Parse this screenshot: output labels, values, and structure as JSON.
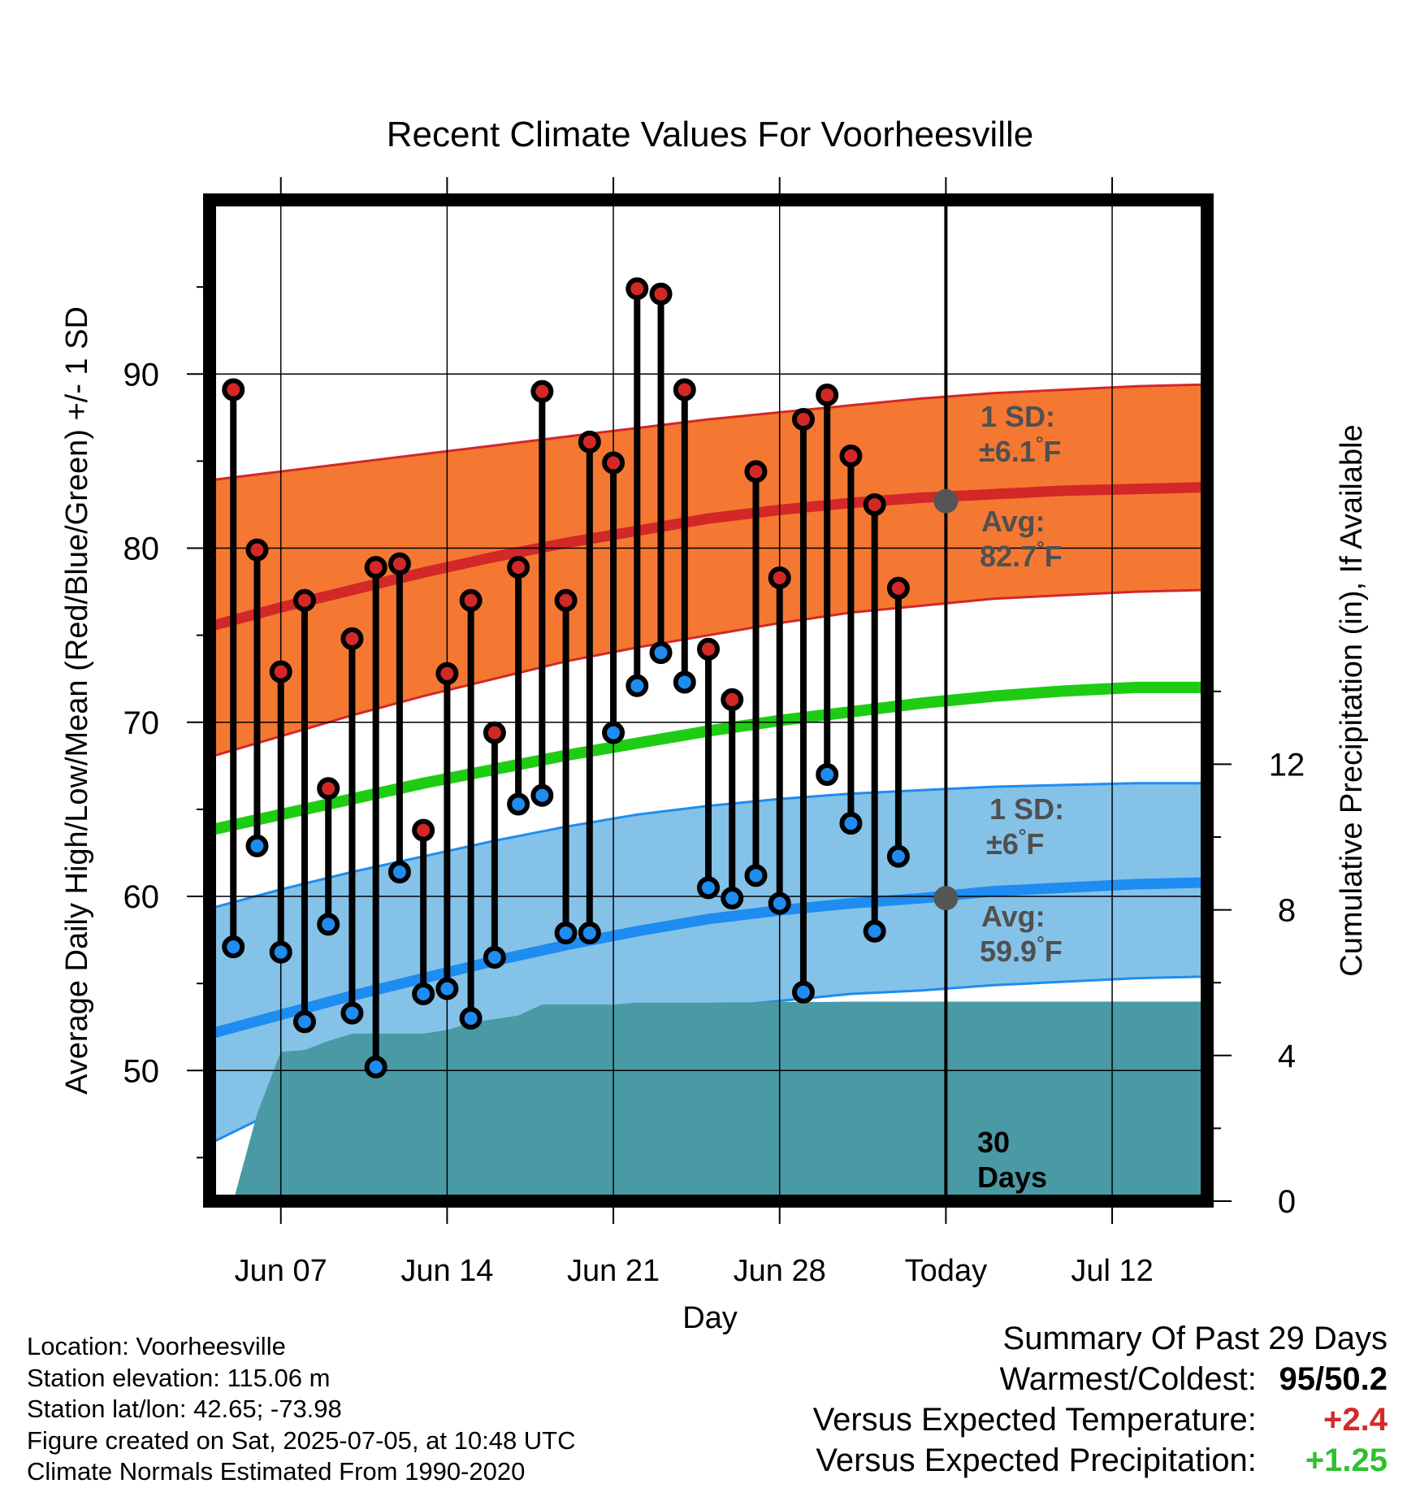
{
  "colors": {
    "high_marker": "#d22828",
    "low_marker": "#1e8cf0",
    "high_band": "#f47832",
    "high_avg_line": "#d22828",
    "low_band": "#85c2e8",
    "low_avg_line": "#1e8cf0",
    "mean_line": "#1ecc14",
    "precip_fill": "#4a9aa6",
    "avg_marker": "#555555",
    "annotation_text": "#505050",
    "warm_value": "#d32a2a",
    "precip_value": "#2ec22e"
  },
  "chart_data": {
    "type": "line",
    "title": "Recent Climate Values For Voorheesville",
    "xlabel": "Day",
    "ylabel": "Average Daily High/Low/Mean (Red/Blue/Green) +/- 1 SD",
    "ylabel_right": "Cumulative Precipitation (in), If Available",
    "xlim": [
      0,
      42
    ],
    "ylim": [
      42.5,
      100
    ],
    "ylim_right": [
      0,
      27.5
    ],
    "x_ticks": [
      {
        "x": 3,
        "label": "Jun 07"
      },
      {
        "x": 10,
        "label": "Jun 14"
      },
      {
        "x": 17,
        "label": "Jun 21"
      },
      {
        "x": 24,
        "label": "Jun 28"
      },
      {
        "x": 31,
        "label": "Today"
      },
      {
        "x": 38,
        "label": "Jul 12"
      }
    ],
    "y_ticks": [
      50,
      60,
      70,
      80,
      90
    ],
    "y_ticks_right": [
      0,
      4,
      8,
      12
    ],
    "grid": true,
    "today_x": 31,
    "today_label": [
      "30",
      "Days"
    ],
    "observed": {
      "x": [
        1,
        2,
        3,
        4,
        5,
        6,
        7,
        8,
        9,
        10,
        11,
        12,
        13,
        14,
        15,
        16,
        17,
        18,
        19,
        20,
        21,
        22,
        23,
        24,
        25,
        26,
        27,
        28,
        29
      ],
      "high": [
        89.1,
        79.9,
        72.9,
        77.0,
        66.2,
        74.8,
        78.9,
        79.1,
        63.8,
        72.8,
        77.0,
        69.4,
        78.9,
        89.0,
        77.0,
        86.1,
        84.9,
        94.9,
        94.6,
        89.1,
        74.2,
        71.3,
        84.4,
        78.3,
        87.4,
        88.8,
        85.3,
        82.5,
        77.7
      ],
      "low": [
        57.1,
        62.9,
        56.8,
        52.8,
        58.4,
        53.3,
        50.2,
        61.4,
        54.4,
        54.7,
        53.0,
        56.5,
        65.3,
        65.8,
        57.9,
        57.9,
        69.4,
        72.1,
        74.0,
        72.3,
        60.5,
        59.9,
        61.2,
        59.6,
        54.5,
        67.0,
        64.2,
        58.0,
        62.3
      ]
    },
    "normals": {
      "x": [
        0,
        3,
        6,
        9,
        12,
        15,
        18,
        21,
        24,
        27,
        30,
        33,
        36,
        39,
        42
      ],
      "high_avg": [
        75.5,
        76.6,
        77.6,
        78.6,
        79.5,
        80.3,
        81.0,
        81.7,
        82.2,
        82.6,
        82.9,
        83.1,
        83.3,
        83.4,
        83.5
      ],
      "high_plus_sd": [
        83.9,
        84.4,
        84.9,
        85.4,
        85.9,
        86.4,
        86.9,
        87.4,
        87.8,
        88.2,
        88.6,
        88.9,
        89.1,
        89.3,
        89.4
      ],
      "high_minus_sd": [
        68.0,
        69.2,
        70.4,
        71.5,
        72.5,
        73.5,
        74.3,
        75.0,
        75.7,
        76.3,
        76.7,
        77.1,
        77.3,
        77.5,
        77.6
      ],
      "mean": [
        63.8,
        64.7,
        65.6,
        66.5,
        67.3,
        68.1,
        68.8,
        69.5,
        70.1,
        70.6,
        71.1,
        71.5,
        71.8,
        72.0,
        72.0
      ],
      "low_avg": [
        52.1,
        53.2,
        54.3,
        55.3,
        56.3,
        57.2,
        58.0,
        58.7,
        59.2,
        59.6,
        59.9,
        60.3,
        60.5,
        60.7,
        60.8
      ],
      "low_plus_sd": [
        59.3,
        60.4,
        61.4,
        62.3,
        63.2,
        64.0,
        64.7,
        65.2,
        65.6,
        65.9,
        66.1,
        66.3,
        66.4,
        66.5,
        66.5
      ],
      "low_minus_sd": [
        45.8,
        47.8,
        49.4,
        50.6,
        51.6,
        52.4,
        53.0,
        53.6,
        54.0,
        54.4,
        54.6,
        54.9,
        55.1,
        55.3,
        55.4
      ]
    },
    "precipitation": {
      "x": [
        1,
        2,
        3,
        4,
        5,
        6,
        7,
        8,
        9,
        10,
        11,
        12,
        13,
        14,
        15,
        16,
        17,
        18,
        19,
        20,
        21,
        22,
        23,
        24,
        25,
        26,
        27,
        28,
        29,
        30,
        31,
        42
      ],
      "cumulative": [
        0.0,
        2.4,
        4.1,
        4.15,
        4.4,
        4.6,
        4.6,
        4.6,
        4.6,
        4.7,
        4.9,
        5.0,
        5.1,
        5.4,
        5.4,
        5.4,
        5.4,
        5.45,
        5.45,
        5.45,
        5.45,
        5.46,
        5.46,
        5.47,
        5.47,
        5.47,
        5.48,
        5.48,
        5.48,
        5.48,
        5.48,
        5.48
      ]
    },
    "annotations": {
      "high_sd": {
        "label": "1 SD:",
        "value": "±6.1",
        "unit": "°F"
      },
      "high_avg": {
        "label": "Avg:",
        "value": "82.7",
        "unit": "°F",
        "y": 82.7
      },
      "low_sd": {
        "label": "1 SD:",
        "value": "±6",
        "unit": "°F"
      },
      "low_avg": {
        "label": "Avg:",
        "value": "59.9",
        "unit": "°F",
        "y": 59.9
      }
    }
  },
  "info": {
    "location": "Location: Voorheesville",
    "elevation": "Station elevation: 115.06 m",
    "latlon": "Station lat/lon: 42.65; -73.98",
    "created": "Figure created on Sat, 2025-07-05, at 10:48 UTC",
    "normals": "Climate Normals Estimated From 1990-2020"
  },
  "summary": {
    "title": "Summary Of Past 29 Days",
    "warmest_label": "Warmest/Coldest:",
    "warmest": "95",
    "coldest": "50.2",
    "temp_label": "Versus Expected Temperature:",
    "temp_value": "+2.4",
    "precip_label": "Versus Expected Precipitation:",
    "precip_value": "+1.25"
  }
}
